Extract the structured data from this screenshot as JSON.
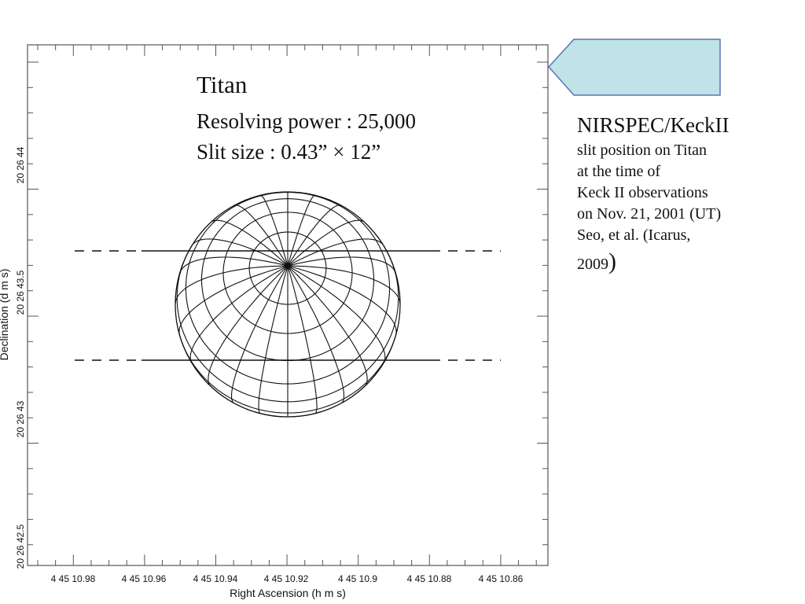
{
  "plot": {
    "target": "Titan",
    "resolving_power": "Resolving power : 25,000",
    "slit_size": "Slit size : 0.43” × 12”",
    "xlabel": "Right Ascension (h m s)",
    "ylabel": "Declination (d m s)",
    "x_ticks": [
      "4 45 10.98",
      "4 45 10.96",
      "4 45 10.94",
      "4 45 10.92",
      "4 45 10.9",
      "4 45 10.88",
      "4 45 10.86"
    ],
    "y_ticks": [
      "20 26 42.5",
      "20 26 43",
      "20 26 43.5",
      "20 26 44"
    ]
  },
  "caption": {
    "title": "NIRSPEC/KeckII",
    "line1": "slit position on Titan",
    "line2": "at the time of",
    "line3": "Keck II observations",
    "line4": "on Nov. 21, 2001 (UT)",
    "line5": "Seo, et al. (Icarus,",
    "line6": "2009",
    "line6_close": ")"
  },
  "arrow": {
    "fill": "#bfe3e6",
    "stroke": "#5a74b8"
  },
  "colors": {
    "frame": "#555555",
    "grid": "#111111",
    "text": "#111111"
  }
}
